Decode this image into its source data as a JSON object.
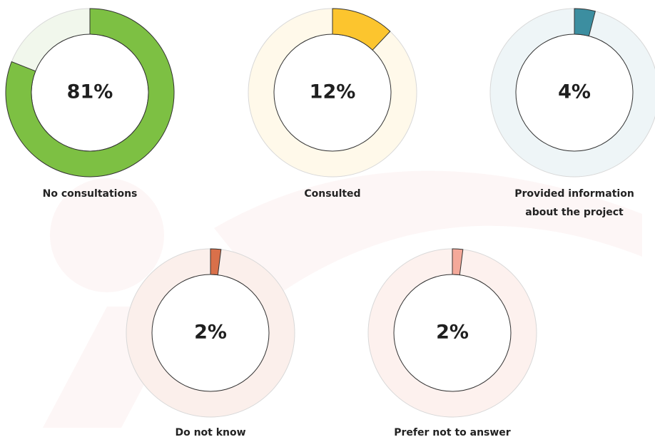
{
  "chart_data": [
    {
      "type": "pie",
      "values": [
        81
      ],
      "value_labels": [
        "81%"
      ],
      "label": "No consultations",
      "color": "#7dc043",
      "track_color": "#f1f7ec"
    },
    {
      "type": "pie",
      "values": [
        12
      ],
      "value_labels": [
        "12%"
      ],
      "label": "Consulted",
      "color": "#fcc52e",
      "track_color": "#fff9ea"
    },
    {
      "type": "pie",
      "values": [
        4
      ],
      "value_labels": [
        "4%"
      ],
      "label": "Provided information about the project",
      "color": "#3c8ea0",
      "track_color": "#eef5f7"
    },
    {
      "type": "pie",
      "values": [
        2
      ],
      "value_labels": [
        "2%"
      ],
      "label": "Do not know",
      "color": "#d9704a",
      "track_color": "#fbefeb"
    },
    {
      "type": "pie",
      "values": [
        2
      ],
      "value_labels": [
        "2%"
      ],
      "label": "Prefer not to answer",
      "color": "#f4a99a",
      "track_color": "#fdf1ee"
    }
  ]
}
